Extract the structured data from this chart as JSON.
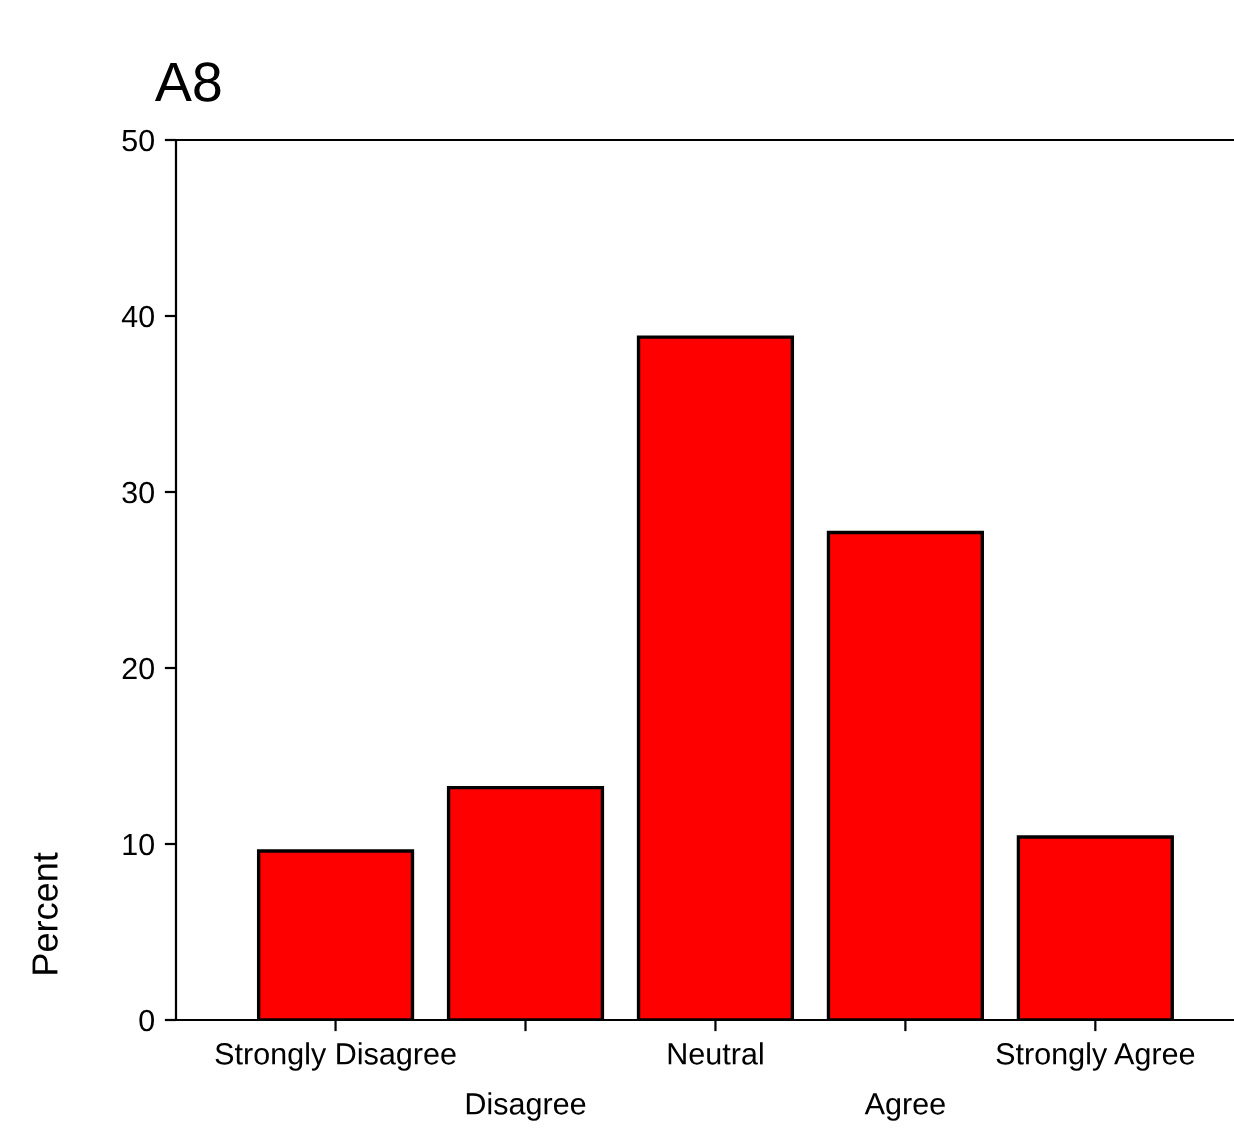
{
  "chart_data": {
    "type": "bar",
    "title": "A8",
    "ylabel": "Percent",
    "categories": [
      "Strongly Disagree",
      "Disagree",
      "Neutral",
      "Agree",
      "Strongly Agree"
    ],
    "values": [
      9.6,
      13.2,
      38.8,
      27.7,
      10.4
    ],
    "color": "#ff0000",
    "ylim": [
      0,
      50
    ],
    "yticks": [
      0,
      10,
      20,
      30,
      40,
      50
    ],
    "grid": false,
    "legend": false
  }
}
